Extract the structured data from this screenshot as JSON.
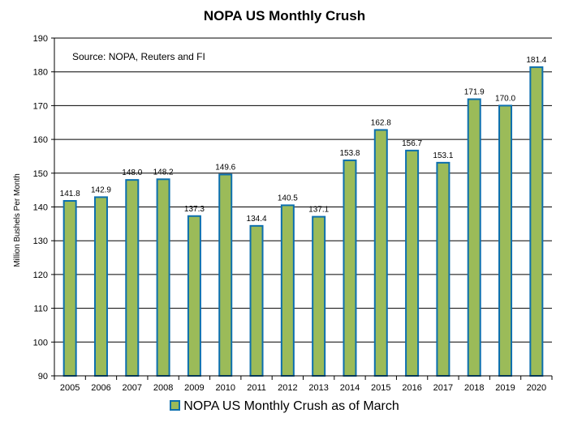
{
  "chart_data": {
    "type": "bar",
    "title": "NOPA US Monthly Crush",
    "annotation": "Source: NOPA, Reuters and FI",
    "ylabel": "Million Bushels Per Month",
    "xlabel": "",
    "ylim": [
      90,
      190
    ],
    "yticks": [
      90,
      100,
      110,
      120,
      130,
      140,
      150,
      160,
      170,
      180,
      190
    ],
    "grid": true,
    "legend_position": "bottom",
    "categories": [
      "2005",
      "2006",
      "2007",
      "2008",
      "2009",
      "2010",
      "2011",
      "2012",
      "2013",
      "2014",
      "2015",
      "2016",
      "2017",
      "2018",
      "2019",
      "2020"
    ],
    "series": [
      {
        "name": "NOPA US Monthly Crush as of March",
        "values": [
          141.8,
          142.9,
          148.0,
          148.2,
          137.3,
          149.6,
          134.4,
          140.5,
          137.1,
          153.8,
          162.8,
          156.7,
          153.1,
          171.9,
          170.0,
          181.4
        ],
        "labels": [
          "141.8",
          "142.9",
          "148.0",
          "148.2",
          "137.3",
          "149.6",
          "134.4",
          "140.5",
          "137.1",
          "153.8",
          "162.8",
          "156.7",
          "153.1",
          "171.9",
          "170.0",
          "181.4"
        ]
      }
    ],
    "colors": {
      "bar_fill": "#9bbb59",
      "bar_border": "#0c6fae",
      "grid": "#000000"
    }
  }
}
